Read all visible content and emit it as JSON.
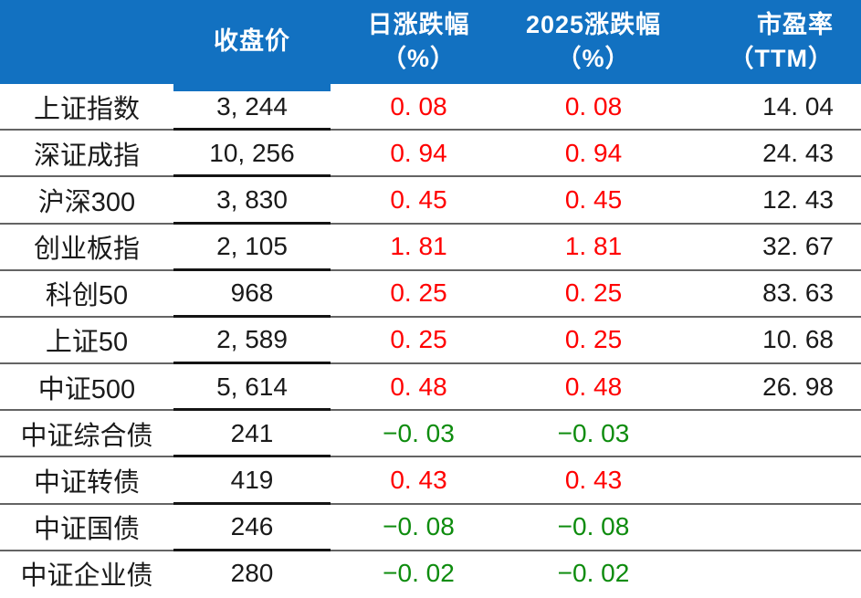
{
  "colors": {
    "header_bg": "#1271C1",
    "header_text": "#FFFFFF",
    "positive_change": "#FF0000",
    "negative_change": "#0E8C0E",
    "body_text": "#1A1A1A",
    "row_divider": "#646464",
    "close_column_divider": "#141414"
  },
  "header": {
    "close": "收盘价",
    "daily_line1": "日涨跌幅",
    "daily_line2": "（%）",
    "ytd_line1": "2025涨跌幅",
    "ytd_line2": "（%）",
    "pe_line1": "市盈率",
    "pe_line2": "（TTM）"
  },
  "chart_data": {
    "type": "table",
    "columns": [
      "",
      "收盘价",
      "日涨跌幅（%）",
      "2025涨跌幅（%）",
      "市盈率（TTM）"
    ],
    "rows": [
      {
        "label": "上证指数",
        "close": "3, 244",
        "daily": "0. 08",
        "ytd": "0. 08",
        "pe": "14. 04",
        "trend": "up"
      },
      {
        "label": "深证成指",
        "close": "10, 256",
        "daily": "0. 94",
        "ytd": "0. 94",
        "pe": "24. 43",
        "trend": "up"
      },
      {
        "label": "沪深300",
        "close": "3, 830",
        "daily": "0. 45",
        "ytd": "0. 45",
        "pe": "12. 43",
        "trend": "up"
      },
      {
        "label": "创业板指",
        "close": "2, 105",
        "daily": "1. 81",
        "ytd": "1. 81",
        "pe": "32. 67",
        "trend": "up"
      },
      {
        "label": "科创50",
        "close": "968",
        "daily": "0. 25",
        "ytd": "0. 25",
        "pe": "83. 63",
        "trend": "up"
      },
      {
        "label": "上证50",
        "close": "2, 589",
        "daily": "0. 25",
        "ytd": "0. 25",
        "pe": "10. 68",
        "trend": "up"
      },
      {
        "label": "中证500",
        "close": "5, 614",
        "daily": "0. 48",
        "ytd": "0. 48",
        "pe": "26. 98",
        "trend": "up"
      },
      {
        "label": "中证综合债",
        "close": "241",
        "daily": "−0. 03",
        "ytd": "−0. 03",
        "pe": "",
        "trend": "down"
      },
      {
        "label": "中证转债",
        "close": "419",
        "daily": "0. 43",
        "ytd": "0. 43",
        "pe": "",
        "trend": "up"
      },
      {
        "label": "中证国债",
        "close": "246",
        "daily": "−0. 08",
        "ytd": "−0. 08",
        "pe": "",
        "trend": "down"
      },
      {
        "label": "中证企业债",
        "close": "280",
        "daily": "−0. 02",
        "ytd": "−0. 02",
        "pe": "",
        "trend": "down"
      }
    ]
  }
}
